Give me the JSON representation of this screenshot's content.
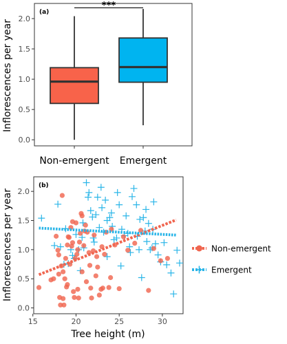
{
  "chart_data": [
    {
      "type": "box",
      "panel_label": "(a)",
      "ylabel": "Inflorescences per year",
      "categories": [
        "Non-emergent",
        "Emergent"
      ],
      "yticks": [
        0.0,
        0.5,
        1.0,
        1.5,
        2.0
      ],
      "ytick_labels": [
        "0.0",
        "0.5",
        "1.0",
        "1.5",
        "2.0"
      ],
      "ylim": [
        -0.1,
        2.25
      ],
      "grid": false,
      "boxes": [
        {
          "category": "Non-emergent",
          "whisker_low": 0.0,
          "q1": 0.6,
          "median": 0.96,
          "q3": 1.19,
          "whisker_high": 2.04,
          "color": "#f8634a"
        },
        {
          "category": "Emergent",
          "whisker_low": 0.24,
          "q1": 0.95,
          "median": 1.2,
          "q3": 1.68,
          "whisker_high": 2.16,
          "color": "#00b4f0"
        }
      ],
      "annotation": {
        "text": "***",
        "between": [
          "Non-emergent",
          "Emergent"
        ],
        "y": 2.24
      }
    },
    {
      "type": "scatter",
      "panel_label": "(b)",
      "xlabel": "Tree height (m)",
      "ylabel": "Inflorescences per year",
      "xticks": [
        15,
        20,
        25,
        30
      ],
      "xtick_labels": [
        "15",
        "20",
        "25",
        "30"
      ],
      "yticks": [
        0.0,
        0.5,
        1.0,
        1.5,
        2.0
      ],
      "ytick_labels": [
        "0.0",
        "0.5",
        "1.0",
        "1.5",
        "2.0"
      ],
      "xlim": [
        15.1,
        32.4
      ],
      "ylim": [
        -0.1,
        2.25
      ],
      "grid": false,
      "legend_position": "right",
      "series": [
        {
          "name": "Non-emergent",
          "marker": "circle",
          "color": "#f06650",
          "x": [
            15.7,
            17.1,
            17.4,
            17.7,
            17.9,
            18.0,
            18.1,
            18.2,
            18.3,
            18.4,
            18.5,
            18.6,
            18.7,
            18.8,
            18.9,
            19.0,
            19.1,
            19.2,
            19.3,
            19.4,
            19.5,
            19.6,
            19.7,
            19.8,
            19.9,
            20.0,
            20.1,
            20.2,
            20.3,
            20.4,
            20.5,
            20.6,
            20.7,
            20.9,
            21.0,
            21.2,
            21.3,
            21.5,
            21.6,
            21.8,
            22.0,
            22.1,
            22.3,
            22.5,
            22.7,
            22.9,
            23.1,
            23.3,
            23.5,
            23.8,
            24.1,
            24.5,
            25.0,
            25.5,
            26.0,
            26.8,
            27.5,
            28.4,
            29.0,
            29.8,
            30.6,
            18.0,
            18.5,
            19.0,
            19.6,
            20.2,
            20.7,
            21.1,
            21.7,
            22.4,
            23.0,
            24.0
          ],
          "y": [
            0.35,
            0.48,
            0.5,
            1.23,
            0.99,
            0.58,
            0.18,
            0.05,
            0.72,
            1.93,
            0.16,
            0.05,
            0.5,
            0.85,
            0.36,
            1.08,
            1.22,
            1.21,
            0.75,
            1.38,
            1.06,
            1.48,
            0.28,
            0.18,
            0.85,
            1.46,
            0.92,
            0.32,
            0.17,
            1.13,
            1.28,
            1.62,
            1.58,
            1.07,
            1.32,
            0.45,
            1.3,
            0.95,
            0.73,
            0.17,
            0.98,
            1.25,
            0.55,
            0.7,
            0.22,
            0.32,
            0.34,
            0.92,
            1.3,
            0.35,
            1.35,
            1.08,
            0.33,
            1.22,
            0.99,
            1.11,
            1.33,
            0.3,
            1.02,
            0.81,
            0.85,
            0.91,
            0.62,
            0.4,
            1.12,
            1.0,
            0.62,
            1.42,
            0.34,
            0.88,
            1.05,
            0.52
          ],
          "trend": {
            "x": [
              15.7,
              31.6
            ],
            "y": [
              0.57,
              1.51
            ]
          }
        },
        {
          "name": "Emergent",
          "marker": "plus",
          "color": "#29b5e8",
          "x": [
            16.0,
            17.5,
            17.9,
            18.2,
            18.6,
            19.1,
            19.4,
            19.8,
            20.0,
            20.3,
            20.5,
            20.7,
            20.9,
            21.2,
            21.5,
            21.7,
            21.9,
            22.1,
            22.3,
            22.5,
            22.7,
            22.9,
            23.0,
            23.2,
            23.4,
            23.6,
            23.9,
            24.1,
            24.4,
            24.7,
            24.8,
            25.0,
            25.3,
            25.6,
            25.8,
            26.0,
            26.2,
            26.5,
            26.7,
            27.0,
            27.1,
            27.3,
            27.6,
            27.8,
            28.0,
            28.2,
            28.4,
            28.6,
            28.8,
            29.0,
            29.2,
            29.5,
            29.8,
            30.2,
            30.5,
            31.0,
            31.3,
            31.7,
            32.0,
            22.0,
            23.6,
            24.2,
            25.2,
            26.3,
            27.4,
            28.1,
            28.9,
            20.8,
            21.4,
            19.6,
            18.8
          ],
          "y": [
            1.54,
            1.07,
            1.78,
            1.05,
            0.75,
            0.76,
            1.0,
            0.85,
            1.26,
            1.0,
            0.64,
            1.21,
            1.03,
            2.15,
            1.98,
            1.67,
            1.56,
            1.13,
            1.6,
            1.9,
            1.38,
            2.07,
            1.72,
            1.3,
            1.85,
            1.5,
            1.55,
            1.63,
            1.17,
            1.2,
            1.98,
            1.77,
            1.35,
            1.24,
            1.58,
            1.28,
            1.05,
            1.91,
            2.05,
            1.77,
            1.23,
            1.0,
            0.52,
            1.55,
            1.32,
            1.14,
            1.45,
            1.0,
            1.03,
            1.82,
            1.1,
            0.91,
            0.79,
            1.12,
            0.74,
            0.6,
            0.24,
            0.99,
            0.77,
            1.2,
            0.88,
            1.4,
            0.72,
            0.95,
            1.52,
            1.69,
            1.35,
            1.46,
            1.9,
            0.9,
            1.36
          ],
          "trend": {
            "x": [
              15.7,
              31.6
            ],
            "y": [
              1.37,
              1.25
            ]
          }
        }
      ]
    }
  ]
}
